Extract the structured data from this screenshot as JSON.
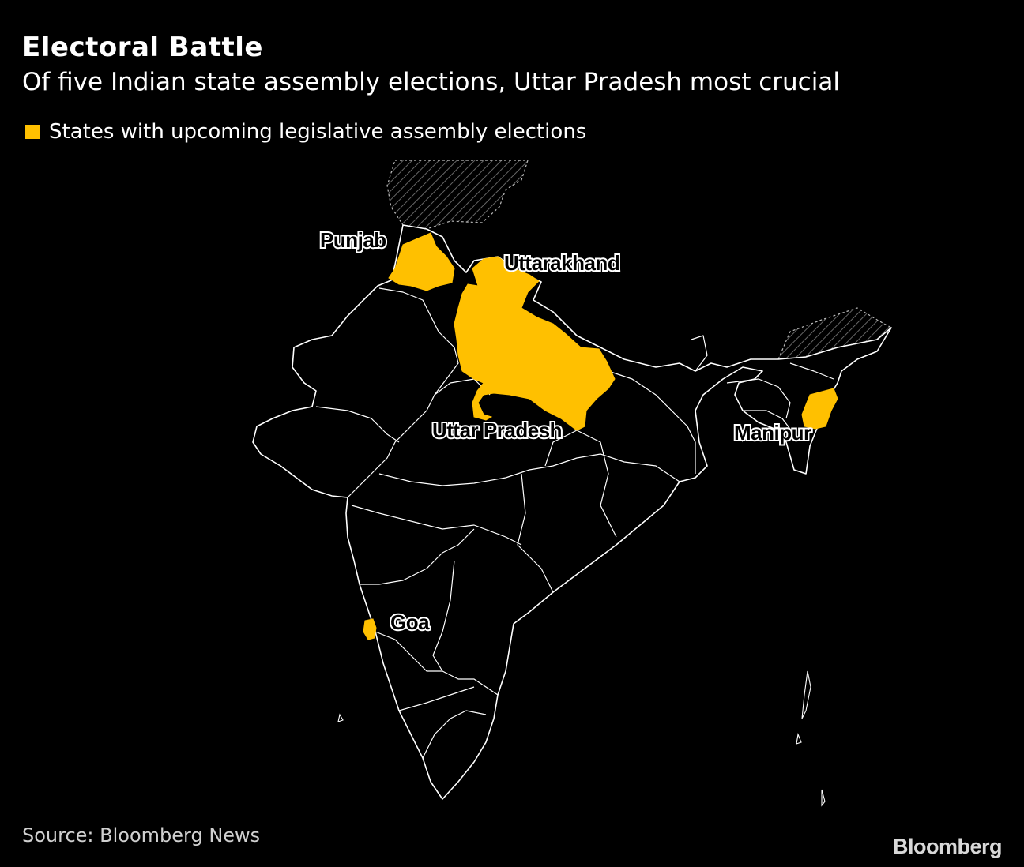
{
  "title": "Electoral Battle",
  "subtitle": "Of five Indian state assembly elections, Uttar Pradesh most crucial",
  "legend": {
    "label": "States with upcoming legislative assembly elections",
    "color": "#FFC000"
  },
  "states": [
    {
      "name": "Punjab"
    },
    {
      "name": "Uttarakhand"
    },
    {
      "name": "Uttar Pradesh"
    },
    {
      "name": "Manipur"
    },
    {
      "name": "Goa"
    }
  ],
  "source": "Source: Bloomberg News",
  "brand": "Bloomberg",
  "colors": {
    "background": "#000000",
    "highlight": "#FFC000",
    "border": "#ffffff"
  }
}
